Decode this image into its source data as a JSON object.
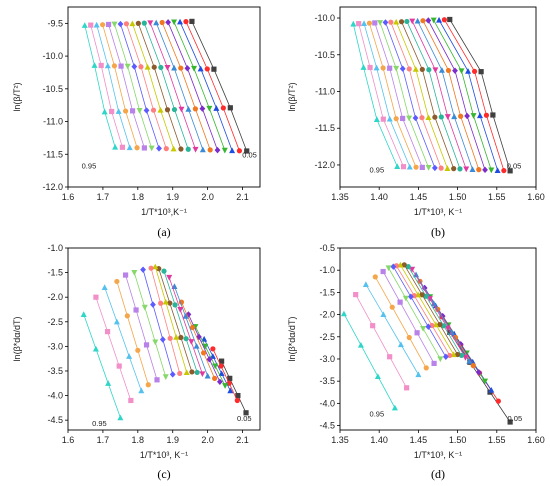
{
  "chart_data": [
    {
      "type": "scatter",
      "caption": "(a)",
      "xlabel": "1/T*10³,K⁻¹",
      "ylabel": "ln(β/T²)",
      "xlim": [
        1.6,
        2.15
      ],
      "ylim": [
        -12.0,
        -9.25
      ],
      "xticks": [
        1.6,
        1.7,
        1.8,
        1.9,
        2.0,
        2.1
      ],
      "yticks": [
        -12.0,
        -11.5,
        -11.0,
        -10.5,
        -10.0,
        -9.5
      ],
      "xtick_labels": [
        "1.6",
        "1.7",
        "1.8",
        "1.9",
        "2.0",
        "2.1"
      ],
      "ytick_labels": [
        "-12.0",
        "-11.5",
        "-11.0",
        "-10.5",
        "-10.0",
        "-9.5"
      ],
      "annotations": [
        {
          "text": "0.05",
          "x": 2.12,
          "y": -11.55
        },
        {
          "text": "0.95",
          "x": 1.66,
          "y": -11.72
        }
      ],
      "n_lines": 19,
      "beta_levels": [
        -9.5,
        -10.17,
        -10.82,
        -11.42
      ],
      "x_first": [
        1.648,
        1.676,
        1.705,
        1.735
      ],
      "x_last": [
        1.955,
        2.018,
        2.065,
        2.112
      ]
    },
    {
      "type": "scatter",
      "caption": "(b)",
      "xlabel": "1/T*10³, K⁻¹",
      "ylabel": "ln(β/T²)",
      "xlim": [
        1.35,
        1.6
      ],
      "ylim": [
        -12.3,
        -9.85
      ],
      "xticks": [
        1.35,
        1.4,
        1.45,
        1.5,
        1.55,
        1.6
      ],
      "yticks": [
        -12.0,
        -11.5,
        -11.0,
        -10.5,
        -10.0
      ],
      "xtick_labels": [
        "1.35",
        "1.40",
        "1.45",
        "1.50",
        "1.55",
        "1.60"
      ],
      "ytick_labels": [
        "-12.0",
        "-11.5",
        "-11.0",
        "-10.5",
        "-10.0"
      ],
      "annotations": [
        {
          "text": "0.05",
          "x": 1.572,
          "y": -12.05
        },
        {
          "text": "0.95",
          "x": 1.397,
          "y": -12.1
        }
      ],
      "n_lines": 19,
      "beta_levels": [
        -10.05,
        -10.7,
        -11.35,
        -12.05
      ],
      "x_first": [
        1.367,
        1.38,
        1.397,
        1.423
      ],
      "x_last": [
        1.49,
        1.53,
        1.545,
        1.567
      ]
    },
    {
      "type": "scatter",
      "caption": "(c)",
      "xlabel": "1/T*10³, K⁻¹",
      "ylabel": "ln(β*dα/dT)",
      "xlim": [
        1.6,
        2.15
      ],
      "ylim": [
        -4.7,
        -1.0
      ],
      "xticks": [
        1.6,
        1.7,
        1.8,
        1.9,
        2.0,
        2.1
      ],
      "yticks": [
        -4.5,
        -4.0,
        -3.5,
        -3.0,
        -2.5,
        -2.0,
        -1.5,
        -1.0
      ],
      "xtick_labels": [
        "1.6",
        "1.7",
        "1.8",
        "1.9",
        "2.0",
        "2.1"
      ],
      "ytick_labels": [
        "-4.5",
        "-4.0",
        "-3.5",
        "-3.0",
        "-2.5",
        "-2.0",
        "-1.5",
        "-1.0"
      ],
      "annotations": [
        {
          "text": "0.05",
          "x": 2.105,
          "y": -4.52
        },
        {
          "text": "0.95",
          "x": 1.69,
          "y": -4.62
        }
      ],
      "n_lines": 19,
      "first_row": [
        [
          1.645,
          -2.35
        ],
        [
          1.68,
          -2.0
        ],
        [
          1.705,
          -1.8
        ],
        [
          1.74,
          -1.68
        ],
        [
          1.765,
          -1.55
        ],
        [
          1.79,
          -1.5
        ],
        [
          1.815,
          -1.44
        ],
        [
          1.838,
          -1.41
        ],
        [
          1.85,
          -1.38
        ],
        [
          1.86,
          -1.42
        ],
        [
          1.875,
          -1.47
        ],
        [
          1.89,
          -1.6
        ],
        [
          1.905,
          -1.78
        ],
        [
          1.925,
          -2.1
        ],
        [
          1.945,
          -2.35
        ],
        [
          1.965,
          -2.6
        ],
        [
          1.99,
          -2.85
        ],
        [
          2.015,
          -3.05
        ],
        [
          2.04,
          -3.3
        ]
      ],
      "last_row": [
        [
          1.75,
          -4.45
        ],
        [
          1.78,
          -4.1
        ],
        [
          1.81,
          -3.9
        ],
        [
          1.83,
          -3.78
        ],
        [
          1.855,
          -3.68
        ],
        [
          1.88,
          -3.62
        ],
        [
          1.9,
          -3.57
        ],
        [
          1.92,
          -3.55
        ],
        [
          1.94,
          -3.53
        ],
        [
          1.955,
          -3.52
        ],
        [
          1.97,
          -3.53
        ],
        [
          1.985,
          -3.56
        ],
        [
          2.0,
          -3.6
        ],
        [
          2.02,
          -3.65
        ],
        [
          2.035,
          -3.72
        ],
        [
          2.05,
          -3.8
        ],
        [
          2.065,
          -3.9
        ],
        [
          2.085,
          -4.1
        ],
        [
          2.11,
          -4.35
        ]
      ]
    },
    {
      "type": "scatter",
      "caption": "(d)",
      "xlabel": "1/T*10³, K⁻¹",
      "ylabel": "ln(β*dα/dT)",
      "xlim": [
        1.35,
        1.6
      ],
      "ylim": [
        -4.6,
        -0.5
      ],
      "xticks": [
        1.35,
        1.4,
        1.45,
        1.5,
        1.55,
        1.6
      ],
      "yticks": [
        -4.5,
        -4.0,
        -3.5,
        -3.0,
        -2.5,
        -2.0,
        -1.5,
        -1.0,
        -0.5
      ],
      "xtick_labels": [
        "1.35",
        "1.40",
        "1.45",
        "1.50",
        "1.55",
        "1.60"
      ],
      "ytick_labels": [
        "-4.5",
        "-4.0",
        "-3.5",
        "-3.0",
        "-2.5",
        "-2.0",
        "-1.5",
        "-1.0",
        "-0.5"
      ],
      "annotations": [
        {
          "text": "0.05",
          "x": 1.573,
          "y": -4.4
        },
        {
          "text": "0.95",
          "x": 1.397,
          "y": -4.3
        }
      ],
      "n_lines": 19,
      "first_row": [
        [
          1.355,
          -1.98
        ],
        [
          1.37,
          -1.55
        ],
        [
          1.383,
          -1.32
        ],
        [
          1.395,
          -1.15
        ],
        [
          1.405,
          -1.03
        ],
        [
          1.412,
          -0.95
        ],
        [
          1.418,
          -0.92
        ],
        [
          1.422,
          -0.9
        ],
        [
          1.427,
          -0.88
        ],
        [
          1.432,
          -0.88
        ],
        [
          1.437,
          -0.92
        ],
        [
          1.442,
          -0.98
        ],
        [
          1.447,
          -1.1
        ],
        [
          1.452,
          -1.25
        ],
        [
          1.458,
          -1.4
        ],
        [
          1.465,
          -1.6
        ],
        [
          1.472,
          -1.8
        ],
        [
          1.48,
          -2.05
        ],
        [
          1.49,
          -2.4
        ]
      ],
      "last_row": [
        [
          1.42,
          -4.1
        ],
        [
          1.435,
          -3.65
        ],
        [
          1.45,
          -3.35
        ],
        [
          1.46,
          -3.2
        ],
        [
          1.47,
          -3.1
        ],
        [
          1.478,
          -3.0
        ],
        [
          1.485,
          -2.95
        ],
        [
          1.49,
          -2.92
        ],
        [
          1.495,
          -2.9
        ],
        [
          1.5,
          -2.9
        ],
        [
          1.505,
          -2.92
        ],
        [
          1.51,
          -2.97
        ],
        [
          1.515,
          -3.05
        ],
        [
          1.52,
          -3.15
        ],
        [
          1.527,
          -3.3
        ],
        [
          1.535,
          -3.5
        ],
        [
          1.543,
          -3.7
        ],
        [
          1.552,
          -3.95
        ],
        [
          1.567,
          -4.42
        ]
      ]
    }
  ],
  "colors": [
    "#404040",
    "#ff2b2b",
    "#1f4de0",
    "#36b52f",
    "#7b2cc9",
    "#f07820",
    "#3a8ad6",
    "#e03aa0",
    "#2ab59b",
    "#8c5b2d",
    "#c8c800",
    "#ff7f7f",
    "#5b5bff",
    "#86d86a",
    "#b982e8",
    "#f5a64a",
    "#55c2ee",
    "#f28fc8",
    "#2ed6c8"
  ],
  "markers": [
    "square",
    "circle",
    "triangle",
    "triangle-down",
    "diamond",
    "circle",
    "triangle",
    "triangle-down",
    "circle",
    "circle",
    "triangle",
    "circle",
    "diamond",
    "triangle-down",
    "square",
    "circle",
    "triangle",
    "square",
    "triangle"
  ]
}
